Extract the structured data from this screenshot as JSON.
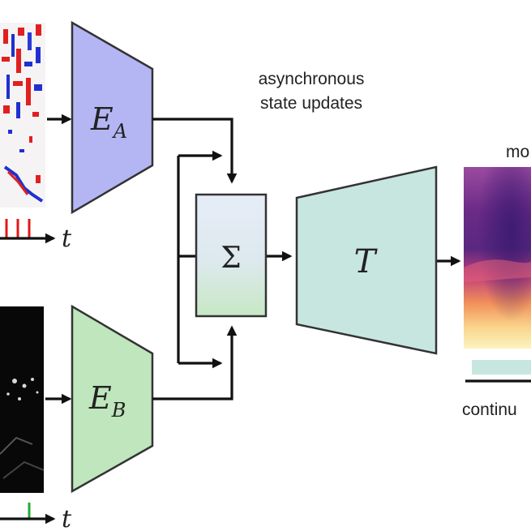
{
  "colors": {
    "encoder_a_fill": "#b4b6f4",
    "encoder_b_fill": "#bfe6bd",
    "transformer_fill": "#c8e6e0",
    "sum_top": "#e6ecf7",
    "sum_bottom": "#c7e8c4",
    "bar_fill": "#c8e6e0",
    "spike_a": "#e01818",
    "spike_b": "#22aa33"
  },
  "icons": {
    "event_frame": "event-frame-thumbnail",
    "gray_frame": "grayscale-frame-thumbnail",
    "depth_map": "depth-map-thumbnail"
  },
  "encoder_a": {
    "label": "E",
    "sub": "A"
  },
  "encoder_b": {
    "label": "E",
    "sub": "B"
  },
  "fusion": {
    "label": "Σ"
  },
  "transformer": {
    "label": "T"
  },
  "annotation": {
    "line1": "asynchronous",
    "line2": "state updates"
  },
  "timeline_a": {
    "axis_label": "t"
  },
  "timeline_b": {
    "axis_label": "t"
  },
  "output": {
    "title": "mo",
    "caption": "continu"
  }
}
